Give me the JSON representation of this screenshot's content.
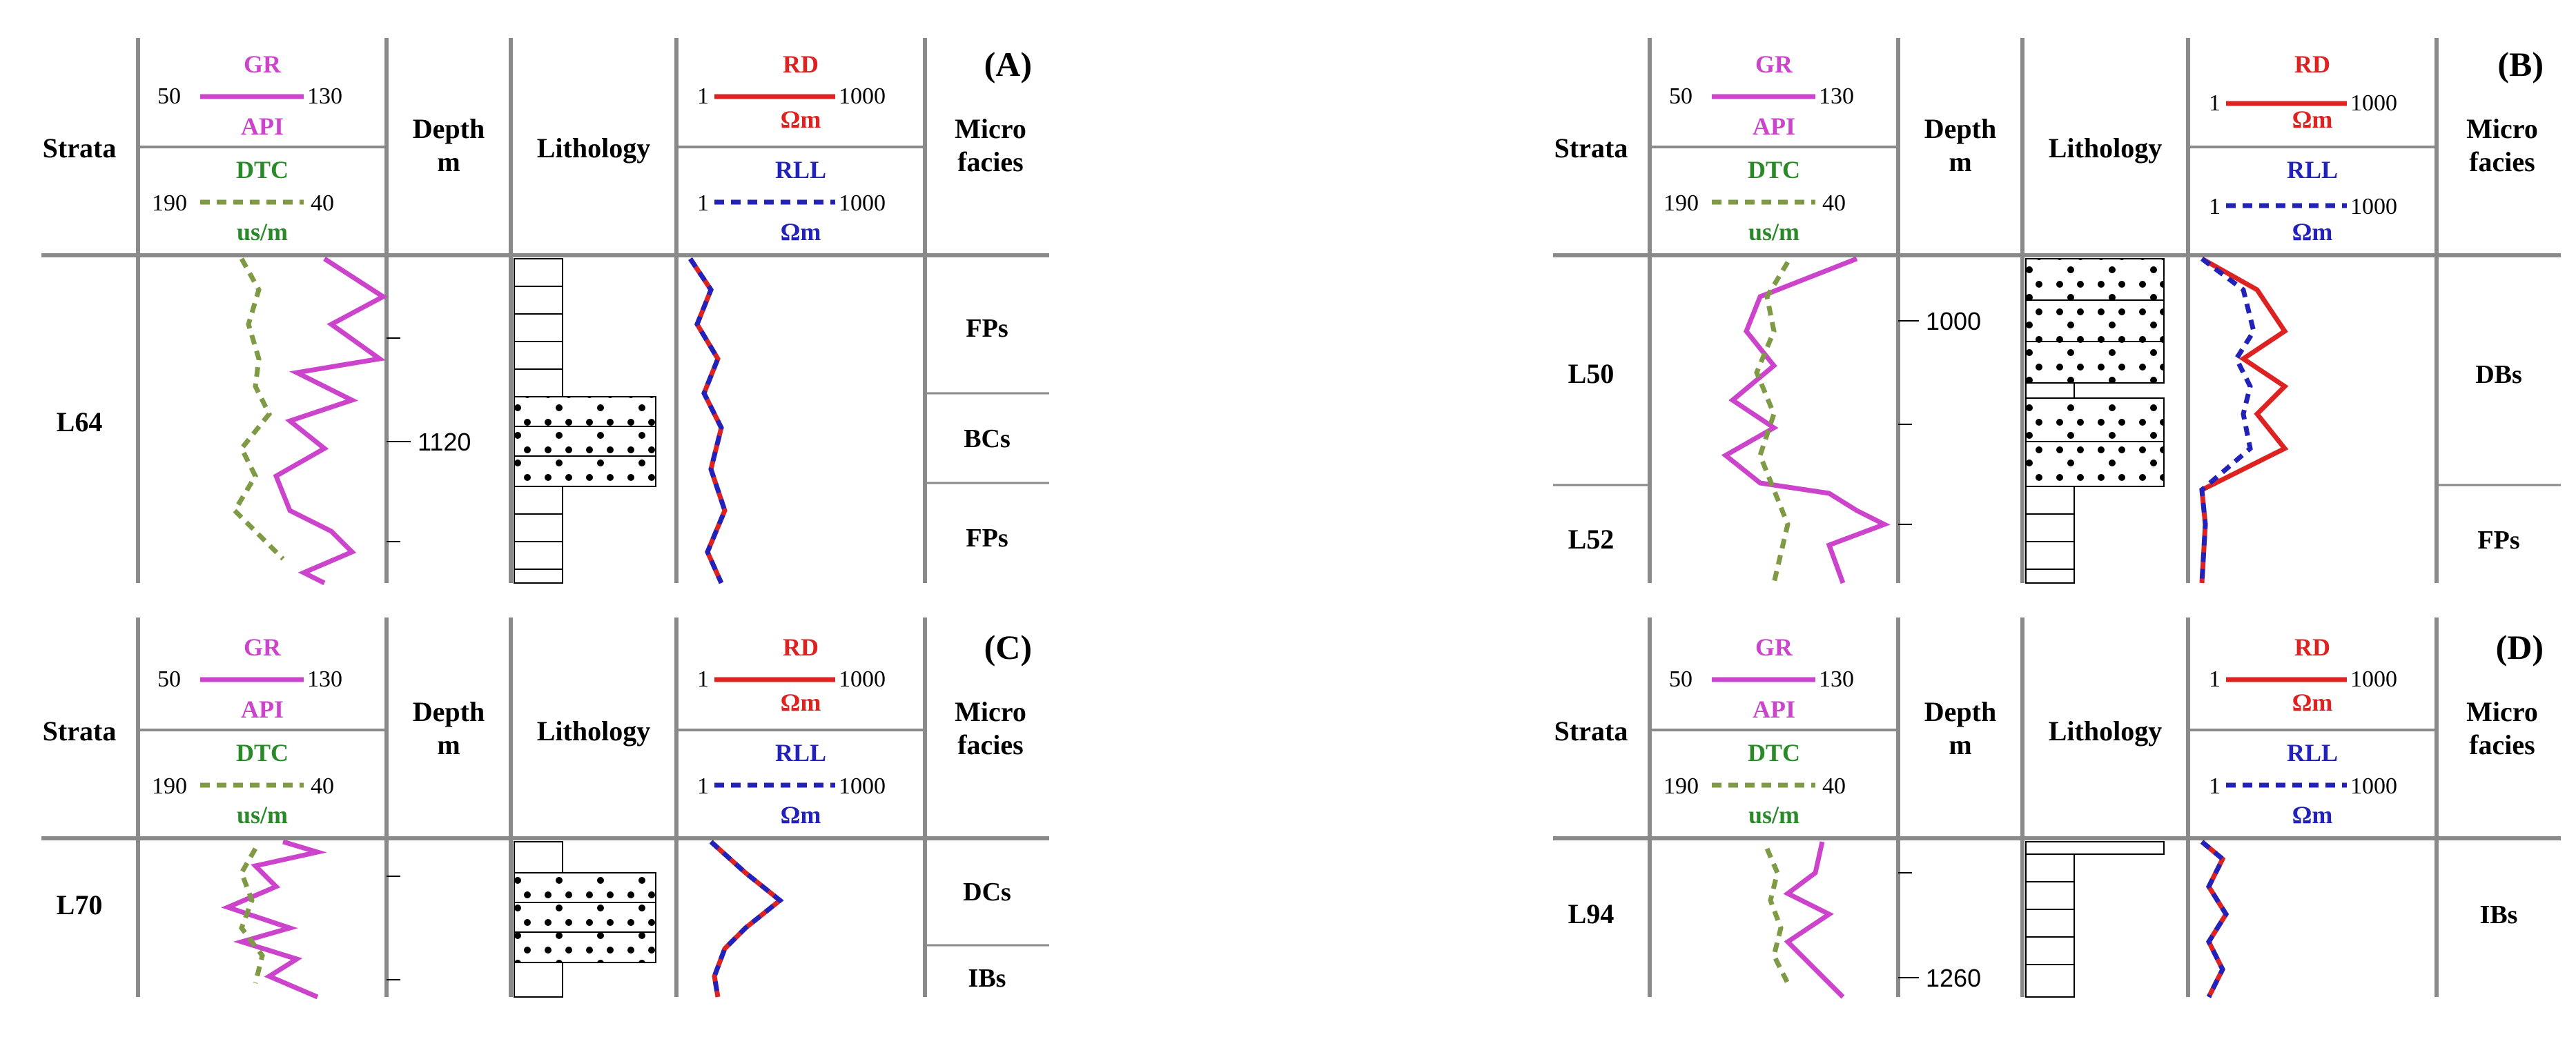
{
  "colors": {
    "gr": "#cc44cc",
    "dtc": "#7f9a45",
    "rd": "#dd2222",
    "rll": "#2222bb",
    "grid": "#8a8a8a",
    "text": "#000000"
  },
  "headers": {
    "strata": "Strata",
    "depth_1": "Depth",
    "depth_2": "m",
    "lithology": "Lithology",
    "micro_1": "Micro",
    "micro_2": "facies",
    "gr_label": "GR",
    "gr_min": "50",
    "gr_max": "130",
    "gr_unit": "API",
    "dtc_label": "DTC",
    "dtc_left": "190",
    "dtc_right": "40",
    "dtc_unit": "us/m",
    "rd_label": "RD",
    "rd_min": "1",
    "rd_max": "1000",
    "rd_unit": "Ωm",
    "rll_label": "RLL",
    "rll_min": "1",
    "rll_max": "1000",
    "rll_unit": "Ωm"
  },
  "panels": [
    {
      "id": "A",
      "label": "(A)",
      "strata": [
        "L64"
      ],
      "depth_ticks": [
        "1120"
      ],
      "facies": [
        "FPs",
        "BCs",
        "FPs"
      ]
    },
    {
      "id": "B",
      "label": "(B)",
      "strata": [
        "L50",
        "L52"
      ],
      "depth_ticks": [
        "1000"
      ],
      "facies": [
        "DBs",
        "FPs"
      ]
    },
    {
      "id": "C",
      "label": "(C)",
      "strata": [
        "L70"
      ],
      "depth_ticks": [],
      "facies": [
        "DCs",
        "IBs"
      ]
    },
    {
      "id": "D",
      "label": "(D)",
      "strata": [
        "L94"
      ],
      "depth_ticks": [
        "1260"
      ],
      "facies": [
        "IBs"
      ]
    }
  ]
}
